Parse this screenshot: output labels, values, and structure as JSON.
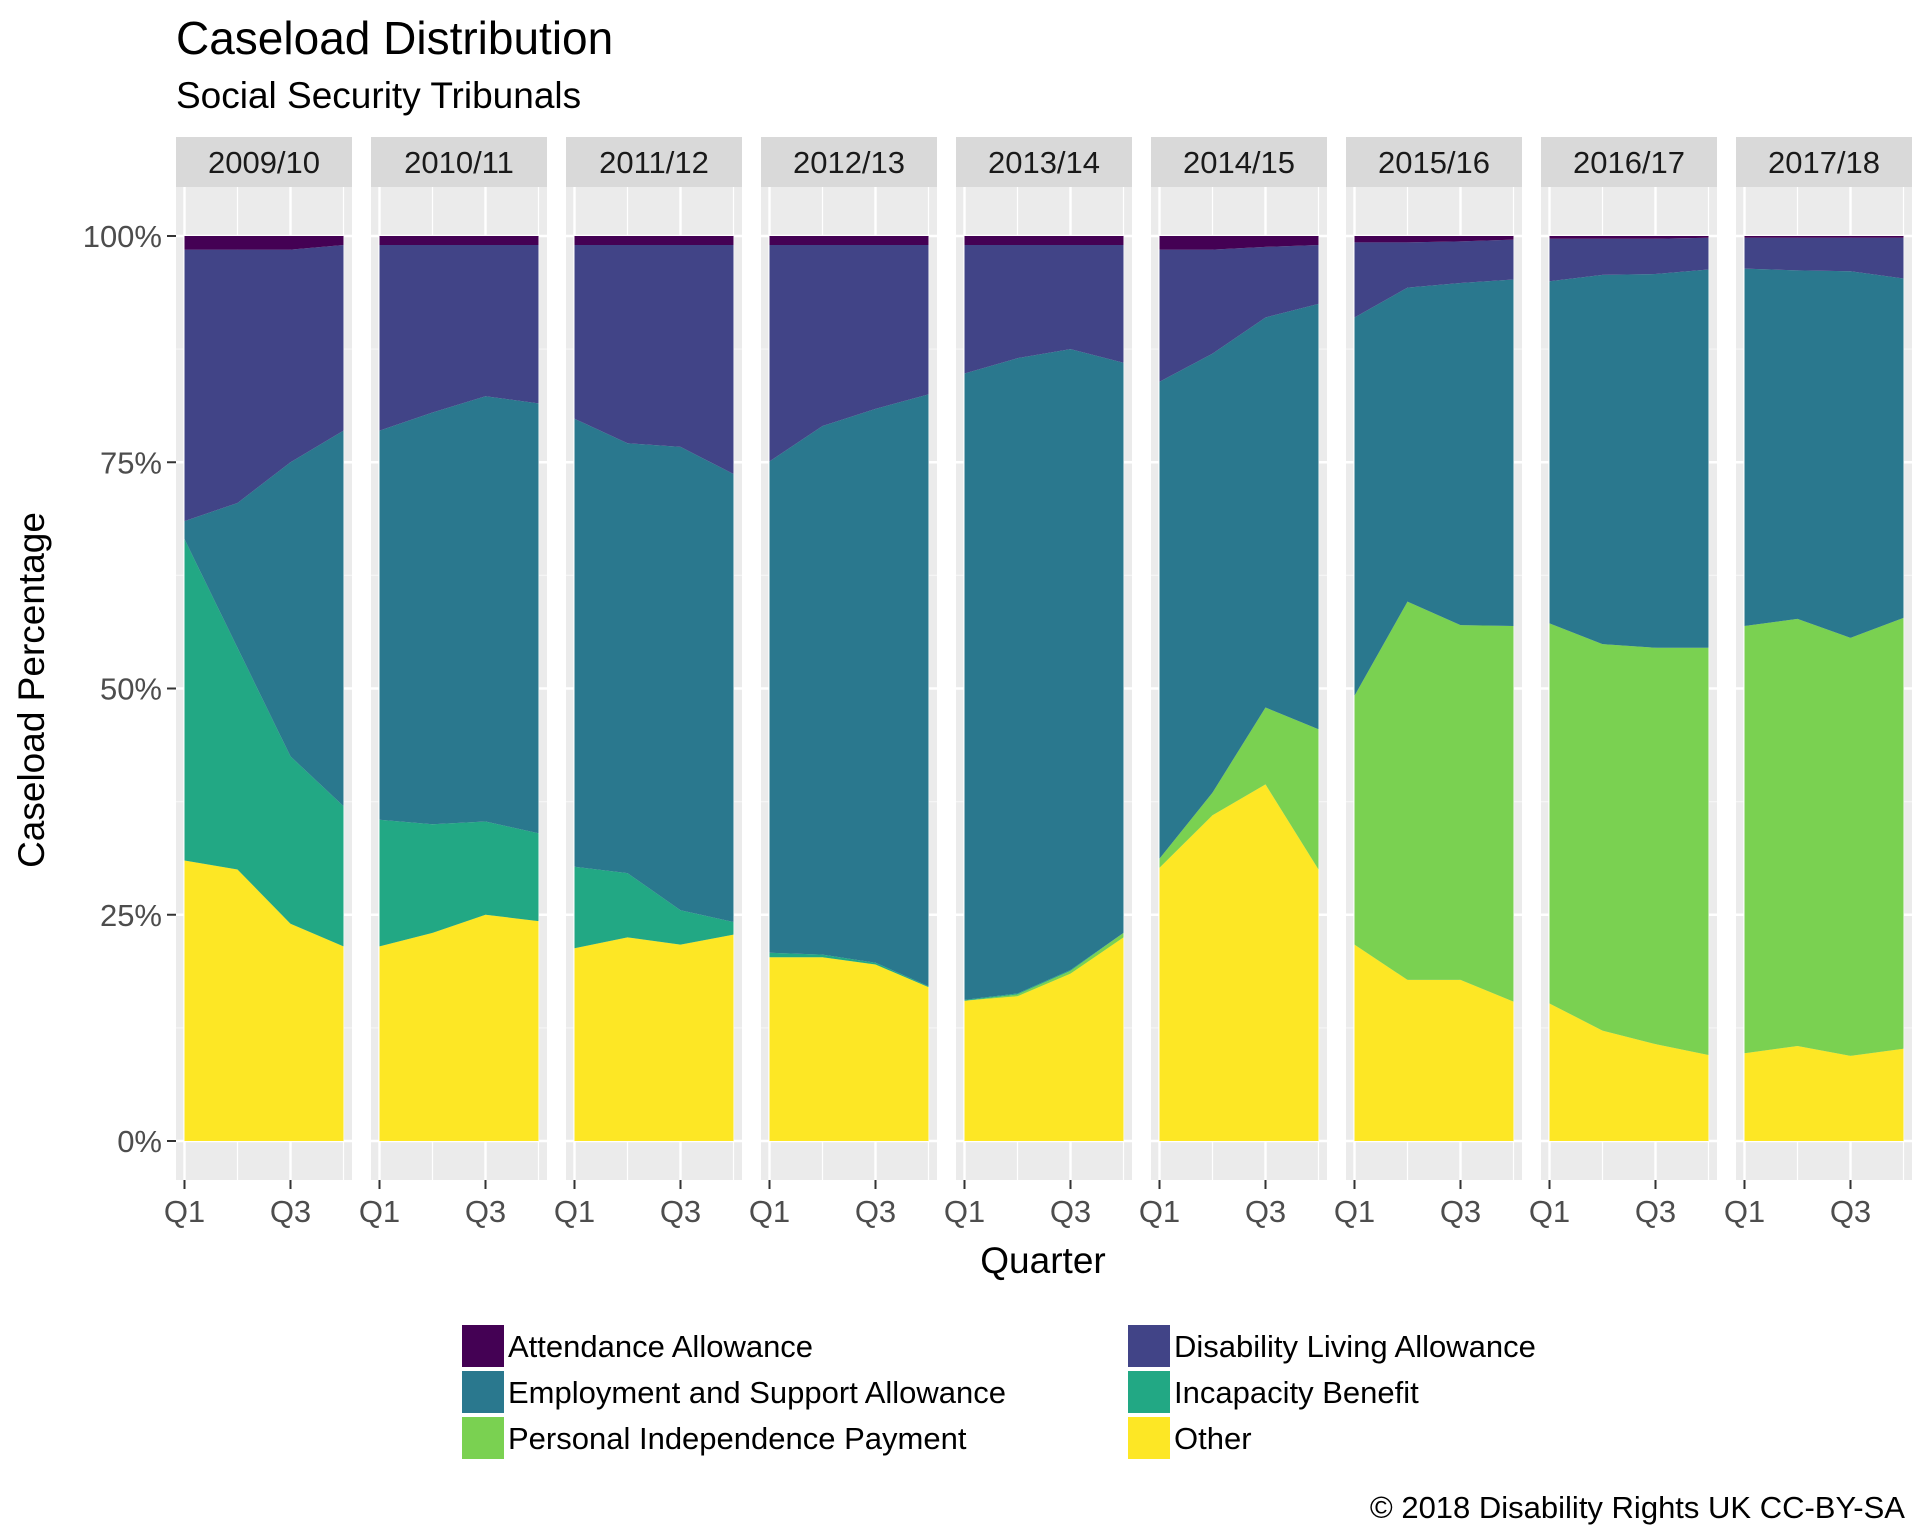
{
  "chart_data": {
    "type": "area",
    "stacked": true,
    "normalized": true,
    "title": "Caseload Distribution",
    "subtitle": "Social Security Tribunals",
    "xlabel": "Quarter",
    "ylabel": "Caseload Percentage",
    "caption": "© 2018 Disability Rights UK CC-BY-SA",
    "ylim": [
      0,
      1
    ],
    "y_ticks": [
      {
        "value": 0,
        "label": "0%"
      },
      {
        "value": 0.25,
        "label": "25%"
      },
      {
        "value": 0.5,
        "label": "50%"
      },
      {
        "value": 0.75,
        "label": "75%"
      },
      {
        "value": 1,
        "label": "100%"
      }
    ],
    "x_ticks": [
      {
        "value": 1,
        "label": "Q1"
      },
      {
        "value": 3,
        "label": "Q3"
      }
    ],
    "quarters": [
      1,
      2,
      3,
      4
    ],
    "legend_position": "bottom",
    "stack_order": [
      "Other",
      "Personal Independence Payment",
      "Incapacity Benefit",
      "Employment and Support Allowance",
      "Disability Living Allowance",
      "Attendance Allowance"
    ],
    "legend": [
      {
        "name": "Attendance Allowance",
        "color": "#440154"
      },
      {
        "name": "Disability Living Allowance",
        "color": "#414487"
      },
      {
        "name": "Employment and Support Allowance",
        "color": "#2A788E"
      },
      {
        "name": "Incapacity Benefit",
        "color": "#22A884"
      },
      {
        "name": "Personal Independence Payment",
        "color": "#7AD151"
      },
      {
        "name": "Other",
        "color": "#FDE725"
      }
    ],
    "panels": [
      {
        "label": "2009/10",
        "series": {
          "Other": [
            0.31,
            0.3,
            0.24,
            0.215
          ],
          "Personal Independence Payment": [
            0,
            0,
            0,
            0
          ],
          "Incapacity Benefit": [
            0.355,
            0.245,
            0.185,
            0.155
          ],
          "Employment and Support Allowance": [
            0.02,
            0.16,
            0.325,
            0.415
          ],
          "Disability Living Allowance": [
            0.3,
            0.28,
            0.235,
            0.205
          ],
          "Attendance Allowance": [
            0.015,
            0.015,
            0.015,
            0.01
          ]
        }
      },
      {
        "label": "2010/11",
        "series": {
          "Other": [
            0.215,
            0.23,
            0.25,
            0.243
          ],
          "Personal Independence Payment": [
            0,
            0,
            0,
            0
          ],
          "Incapacity Benefit": [
            0.14,
            0.12,
            0.103,
            0.097
          ],
          "Employment and Support Allowance": [
            0.43,
            0.455,
            0.47,
            0.475
          ],
          "Disability Living Allowance": [
            0.205,
            0.185,
            0.167,
            0.175
          ],
          "Attendance Allowance": [
            0.01,
            0.01,
            0.01,
            0.01
          ]
        }
      },
      {
        "label": "2011/12",
        "series": {
          "Other": [
            0.213,
            0.225,
            0.217,
            0.228
          ],
          "Personal Independence Payment": [
            0,
            0,
            0,
            0
          ],
          "Incapacity Benefit": [
            0.09,
            0.071,
            0.038,
            0.014
          ],
          "Employment and Support Allowance": [
            0.495,
            0.475,
            0.512,
            0.495
          ],
          "Disability Living Allowance": [
            0.192,
            0.219,
            0.223,
            0.253
          ],
          "Attendance Allowance": [
            0.01,
            0.01,
            0.01,
            0.01
          ]
        }
      },
      {
        "label": "2012/13",
        "series": {
          "Other": [
            0.203,
            0.203,
            0.195,
            0.17
          ],
          "Personal Independence Payment": [
            0,
            0,
            0,
            0
          ],
          "Incapacity Benefit": [
            0.005,
            0.003,
            0.002,
            0.001
          ],
          "Employment and Support Allowance": [
            0.543,
            0.584,
            0.612,
            0.654
          ],
          "Disability Living Allowance": [
            0.239,
            0.2,
            0.181,
            0.165
          ],
          "Attendance Allowance": [
            0.01,
            0.01,
            0.01,
            0.01
          ]
        }
      },
      {
        "label": "2013/14",
        "series": {
          "Other": [
            0.155,
            0.16,
            0.185,
            0.225
          ],
          "Personal Independence Payment": [
            0,
            0.002,
            0.003,
            0.005
          ],
          "Incapacity Benefit": [
            0.001,
            0.001,
            0.001,
            0
          ],
          "Employment and Support Allowance": [
            0.692,
            0.702,
            0.686,
            0.63
          ],
          "Disability Living Allowance": [
            0.142,
            0.125,
            0.115,
            0.13
          ],
          "Attendance Allowance": [
            0.01,
            0.01,
            0.01,
            0.01
          ]
        }
      },
      {
        "label": "2014/15",
        "series": {
          "Other": [
            0.302,
            0.36,
            0.394,
            0.3
          ],
          "Personal Independence Payment": [
            0.01,
            0.025,
            0.085,
            0.155
          ],
          "Incapacity Benefit": [
            0,
            0,
            0,
            0
          ],
          "Employment and Support Allowance": [
            0.527,
            0.485,
            0.431,
            0.47
          ],
          "Disability Living Allowance": [
            0.146,
            0.115,
            0.078,
            0.065
          ],
          "Attendance Allowance": [
            0.015,
            0.015,
            0.012,
            0.01
          ]
        }
      },
      {
        "label": "2015/16",
        "series": {
          "Other": [
            0.217,
            0.178,
            0.178,
            0.154
          ],
          "Personal Independence Payment": [
            0.275,
            0.418,
            0.392,
            0.415
          ],
          "Incapacity Benefit": [
            0,
            0,
            0,
            0
          ],
          "Employment and Support Allowance": [
            0.418,
            0.347,
            0.378,
            0.383
          ],
          "Disability Living Allowance": [
            0.083,
            0.05,
            0.046,
            0.044
          ],
          "Attendance Allowance": [
            0.007,
            0.007,
            0.006,
            0.004
          ]
        }
      },
      {
        "label": "2016/17",
        "series": {
          "Other": [
            0.152,
            0.122,
            0.107,
            0.095
          ],
          "Personal Independence Payment": [
            0.42,
            0.427,
            0.438,
            0.45
          ],
          "Incapacity Benefit": [
            0,
            0,
            0,
            0
          ],
          "Employment and Support Allowance": [
            0.378,
            0.408,
            0.413,
            0.418
          ],
          "Disability Living Allowance": [
            0.047,
            0.04,
            0.039,
            0.035
          ],
          "Attendance Allowance": [
            0.003,
            0.003,
            0.003,
            0.002
          ]
        }
      },
      {
        "label": "2017/18",
        "series": {
          "Other": [
            0.097,
            0.105,
            0.094,
            0.102
          ],
          "Personal Independence Payment": [
            0.472,
            0.472,
            0.462,
            0.476
          ],
          "Incapacity Benefit": [
            0,
            0,
            0,
            0
          ],
          "Employment and Support Allowance": [
            0.395,
            0.385,
            0.405,
            0.375
          ],
          "Disability Living Allowance": [
            0.034,
            0.036,
            0.037,
            0.045
          ],
          "Attendance Allowance": [
            0.002,
            0.002,
            0.002,
            0.002
          ]
        }
      }
    ]
  }
}
